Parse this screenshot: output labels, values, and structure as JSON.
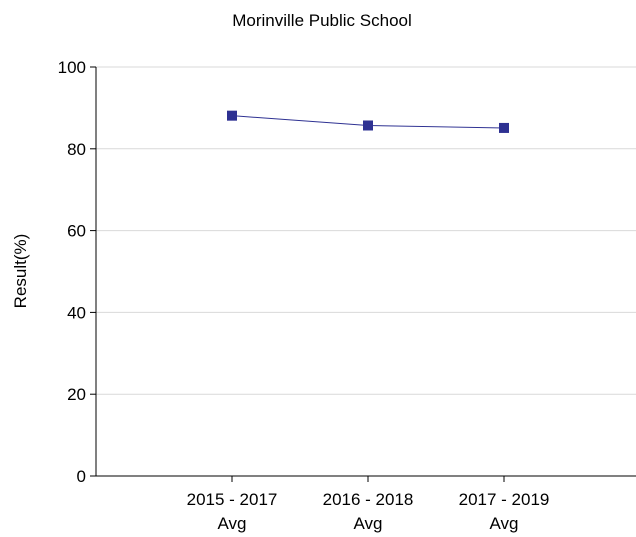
{
  "chart_data": {
    "type": "line",
    "title": "Morinville Public School",
    "xlabel": "",
    "ylabel": "Result(%)",
    "categories": [
      [
        "2015 - 2017",
        "Avg"
      ],
      [
        "2016 - 2018",
        "Avg"
      ],
      [
        "2017 - 2019",
        "Avg"
      ]
    ],
    "series": [
      {
        "values": [
          88.1,
          85.7,
          85.1
        ]
      }
    ],
    "ylim": [
      0,
      100
    ],
    "yticks": [
      "0",
      "20",
      "40",
      "60",
      "80",
      "100"
    ],
    "grid": true,
    "legend": "none",
    "colors": {
      "series": "#2e3192",
      "grid": "#d9d9d9",
      "axis": "#000000"
    }
  }
}
